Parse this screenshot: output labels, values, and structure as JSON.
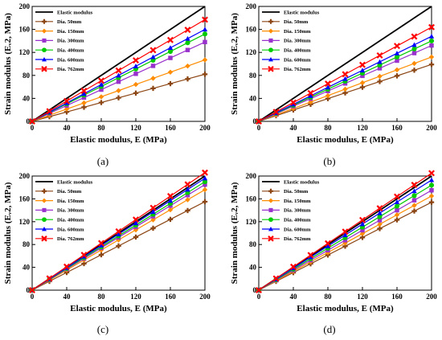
{
  "figure": {
    "panel_labels": [
      "(a)",
      "(b)",
      "(c)",
      "(d)"
    ]
  },
  "legend": {
    "entries": [
      "Elastic modulus",
      "Dia. 50mm",
      "Dia. 150mm",
      "Dia. 300mm",
      "Dia. 400mm",
      "Dia. 600mm",
      "Dia. 762mm"
    ]
  },
  "chart_data": [
    {
      "type": "line",
      "panel": "(a)",
      "xlabel": "Elastic modulus, E (MPa)",
      "ylabel": "Strain modulus (Eᵥ2, MPa)",
      "xlim": [
        0,
        200
      ],
      "ylim": [
        0,
        200
      ],
      "xticks": [
        0,
        40,
        80,
        120,
        160,
        200
      ],
      "yticks": [
        0,
        40,
        80,
        120,
        160,
        200
      ],
      "grid": false,
      "legend_position": "top-left",
      "x": [
        0,
        20,
        40,
        60,
        80,
        100,
        120,
        140,
        160,
        180,
        200
      ],
      "series": [
        {
          "name": "Elastic modulus",
          "color": "#000000",
          "marker": "none",
          "values": [
            0,
            20,
            40,
            60,
            80,
            100,
            120,
            140,
            160,
            180,
            200
          ]
        },
        {
          "name": "Dia. 50mm",
          "color": "#8b4513",
          "marker": "plus",
          "values": [
            0,
            8.2,
            16.4,
            24.6,
            32.8,
            41,
            49.2,
            57.4,
            65.6,
            73.8,
            82
          ]
        },
        {
          "name": "Dia. 150mm",
          "color": "#ff8c00",
          "marker": "diamond",
          "values": [
            0,
            10.7,
            21.4,
            32.1,
            42.8,
            53.5,
            64.2,
            74.9,
            85.6,
            96.3,
            107
          ]
        },
        {
          "name": "Dia. 300mm",
          "color": "#9932cc",
          "marker": "square",
          "values": [
            0,
            13.8,
            27.6,
            41.4,
            55.2,
            69,
            82.8,
            96.6,
            110.4,
            124.2,
            138
          ]
        },
        {
          "name": "Dia. 400mm",
          "color": "#00cc00",
          "marker": "circle",
          "values": [
            0,
            15.2,
            30.4,
            45.6,
            60.8,
            76,
            91.2,
            106.4,
            121.6,
            136.8,
            152
          ]
        },
        {
          "name": "Dia. 600mm",
          "color": "#0000ff",
          "marker": "triangle",
          "values": [
            0,
            16,
            32,
            48,
            64,
            80,
            96,
            112,
            128,
            144,
            160
          ]
        },
        {
          "name": "Dia. 762mm",
          "color": "#ff0000",
          "marker": "x",
          "values": [
            0,
            17.7,
            35.4,
            53.1,
            70.8,
            88.5,
            106.2,
            123.9,
            141.6,
            159.3,
            177
          ]
        }
      ]
    },
    {
      "type": "line",
      "panel": "(b)",
      "xlabel": "Elastic modulus, E (MPa)",
      "ylabel": "Strain modulus (Eᵥ2, MPa)",
      "xlim": [
        0,
        200
      ],
      "ylim": [
        0,
        200
      ],
      "xticks": [
        0,
        40,
        80,
        120,
        160,
        200
      ],
      "yticks": [
        0,
        40,
        80,
        120,
        160,
        200
      ],
      "grid": false,
      "legend_position": "top-left",
      "x": [
        0,
        20,
        40,
        60,
        80,
        100,
        120,
        140,
        160,
        180,
        200
      ],
      "series": [
        {
          "name": "Elastic modulus",
          "color": "#000000",
          "marker": "none",
          "values": [
            0,
            20,
            40,
            60,
            80,
            100,
            120,
            140,
            160,
            180,
            200
          ]
        },
        {
          "name": "Dia. 50mm",
          "color": "#8b4513",
          "marker": "plus",
          "values": [
            0,
            9.9,
            19.8,
            29.7,
            39.6,
            49.5,
            59.4,
            69.3,
            79.2,
            89.1,
            99
          ]
        },
        {
          "name": "Dia. 150mm",
          "color": "#ff8c00",
          "marker": "diamond",
          "values": [
            0,
            11.2,
            22.4,
            33.6,
            44.8,
            56,
            67.2,
            78.4,
            89.6,
            100.8,
            112
          ]
        },
        {
          "name": "Dia. 300mm",
          "color": "#9932cc",
          "marker": "square",
          "values": [
            0,
            13.2,
            26.4,
            39.6,
            52.8,
            66,
            79.2,
            92.4,
            105.6,
            118.8,
            132
          ]
        },
        {
          "name": "Dia. 400mm",
          "color": "#00cc00",
          "marker": "circle",
          "values": [
            0,
            14,
            28,
            42,
            56,
            70,
            84,
            98,
            112,
            126,
            140
          ]
        },
        {
          "name": "Dia. 600mm",
          "color": "#0000ff",
          "marker": "triangle",
          "values": [
            0,
            14.8,
            29.6,
            44.4,
            59.2,
            74,
            88.8,
            103.6,
            118.4,
            133.2,
            148
          ]
        },
        {
          "name": "Dia. 762mm",
          "color": "#ff0000",
          "marker": "x",
          "values": [
            0,
            16.4,
            32.8,
            49.2,
            65.6,
            82,
            98.4,
            114.8,
            131.2,
            147.6,
            164
          ]
        }
      ]
    },
    {
      "type": "line",
      "panel": "(c)",
      "xlabel": "Elastic modulus, E (MPa)",
      "ylabel": "Strain modulus (Eᵥ2, MPa)",
      "xlim": [
        0,
        200
      ],
      "ylim": [
        0,
        200
      ],
      "xticks": [
        0,
        40,
        80,
        120,
        160,
        200
      ],
      "yticks": [
        0,
        40,
        80,
        120,
        160,
        200
      ],
      "grid": false,
      "legend_position": "top-left",
      "x": [
        0,
        20,
        40,
        60,
        80,
        100,
        120,
        140,
        160,
        180,
        200
      ],
      "series": [
        {
          "name": "Elastic modulus",
          "color": "#000000",
          "marker": "none",
          "values": [
            0,
            20,
            40,
            60,
            80,
            100,
            120,
            140,
            160,
            180,
            200
          ]
        },
        {
          "name": "Dia. 50mm",
          "color": "#8b4513",
          "marker": "plus",
          "values": [
            0,
            15.5,
            31,
            46.5,
            62,
            77.5,
            93,
            108.5,
            124,
            139.5,
            155
          ]
        },
        {
          "name": "Dia. 150mm",
          "color": "#ff8c00",
          "marker": "diamond",
          "values": [
            0,
            17.6,
            35.2,
            52.8,
            70.4,
            88,
            105.6,
            123.2,
            140.8,
            158.4,
            176
          ]
        },
        {
          "name": "Dia. 300mm",
          "color": "#9932cc",
          "marker": "square",
          "values": [
            0,
            18.5,
            37,
            55.5,
            74,
            92.5,
            111,
            129.5,
            148,
            166.5,
            185
          ]
        },
        {
          "name": "Dia. 400mm",
          "color": "#00cc00",
          "marker": "circle",
          "values": [
            0,
            19,
            38,
            57,
            76,
            95,
            114,
            133,
            152,
            171,
            190
          ]
        },
        {
          "name": "Dia. 600mm",
          "color": "#0000ff",
          "marker": "triangle",
          "values": [
            0,
            19.6,
            39.2,
            58.8,
            78.4,
            98,
            117.6,
            137.2,
            156.8,
            176.4,
            196
          ]
        },
        {
          "name": "Dia. 762mm",
          "color": "#ff0000",
          "marker": "x",
          "values": [
            0,
            20.6,
            41.2,
            61.8,
            82.4,
            103,
            123.6,
            144.2,
            164.8,
            185.4,
            206
          ]
        }
      ]
    },
    {
      "type": "line",
      "panel": "(d)",
      "xlabel": "Elastic modulus, E (MPa)",
      "ylabel": "Strain modulus (Eᵥ2, MPa)",
      "xlim": [
        0,
        200
      ],
      "ylim": [
        0,
        200
      ],
      "xticks": [
        0,
        40,
        80,
        120,
        160,
        200
      ],
      "yticks": [
        0,
        40,
        80,
        120,
        160,
        200
      ],
      "grid": false,
      "legend_position": "top-left",
      "x": [
        0,
        20,
        40,
        60,
        80,
        100,
        120,
        140,
        160,
        180,
        200
      ],
      "series": [
        {
          "name": "Elastic modulus",
          "color": "#000000",
          "marker": "none",
          "values": [
            0,
            20,
            40,
            60,
            80,
            100,
            120,
            140,
            160,
            180,
            200
          ]
        },
        {
          "name": "Dia. 50mm",
          "color": "#8b4513",
          "marker": "plus",
          "values": [
            0,
            15.4,
            30.8,
            46.2,
            61.6,
            77,
            92.4,
            107.8,
            123.2,
            138.6,
            154
          ]
        },
        {
          "name": "Dia. 150mm",
          "color": "#ff8c00",
          "marker": "diamond",
          "values": [
            0,
            16.5,
            33,
            49.5,
            66,
            82.5,
            99,
            115.5,
            132,
            148.5,
            165
          ]
        },
        {
          "name": "Dia. 300mm",
          "color": "#9932cc",
          "marker": "square",
          "values": [
            0,
            17.5,
            35,
            52.5,
            70,
            87.5,
            105,
            122.5,
            140,
            157.5,
            175
          ]
        },
        {
          "name": "Dia. 400mm",
          "color": "#00cc00",
          "marker": "circle",
          "values": [
            0,
            18.4,
            36.8,
            55.2,
            73.6,
            92,
            110.4,
            128.8,
            147.2,
            165.6,
            184
          ]
        },
        {
          "name": "Dia. 600mm",
          "color": "#0000ff",
          "marker": "triangle",
          "values": [
            0,
            19.3,
            38.6,
            57.9,
            77.2,
            96.5,
            115.8,
            135.1,
            154.4,
            173.7,
            193
          ]
        },
        {
          "name": "Dia. 762mm",
          "color": "#ff0000",
          "marker": "x",
          "values": [
            0,
            20.5,
            41,
            61.5,
            82,
            102.5,
            123,
            143.5,
            164,
            184.5,
            205
          ]
        }
      ]
    }
  ]
}
